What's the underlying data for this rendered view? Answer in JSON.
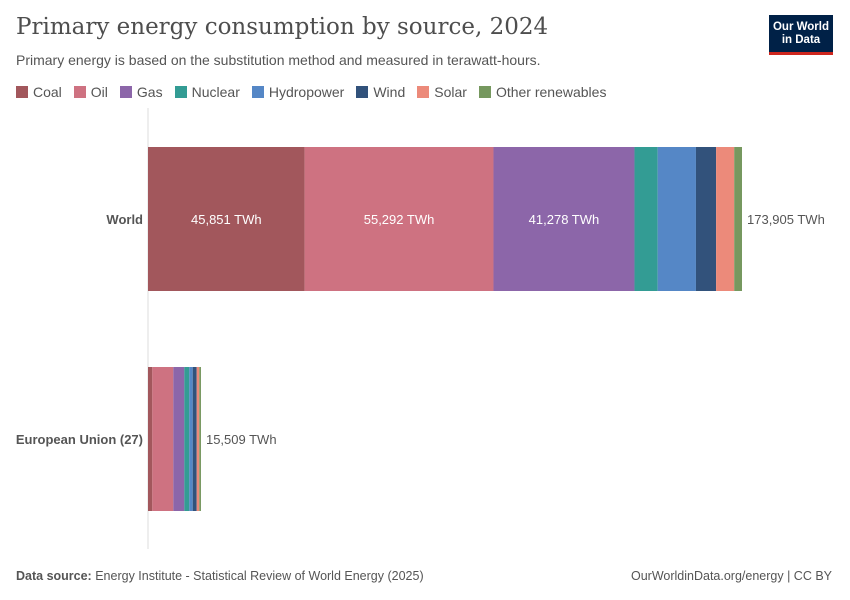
{
  "title": "Primary energy consumption by source, 2024",
  "subtitle": "Primary energy is based on the substitution method and measured in terawatt-hours.",
  "logo": "Our World in Data",
  "footer": {
    "source_label": "Data source:",
    "source": "Energy Institute - Statistical Review of World Energy (2025)",
    "right": "OurWorldinData.org/energy | CC BY"
  },
  "chart_data": {
    "type": "bar",
    "orientation": "horizontal",
    "stacked": true,
    "unit": "TWh",
    "title": "Primary energy consumption by source, 2024",
    "categories": [
      "World",
      "European Union (27)"
    ],
    "totals": [
      "173,905 TWh",
      "15,509 TWh"
    ],
    "total_values": [
      173905,
      15509
    ],
    "legend_placement": "top",
    "series": [
      {
        "name": "Coal",
        "color": "#a2575c",
        "values": [
          45851,
          1260
        ],
        "labels": [
          "45,851 TWh",
          ""
        ]
      },
      {
        "name": "Oil",
        "color": "#ce7281",
        "values": [
          55292,
          6150
        ],
        "labels": [
          "55,292 TWh",
          ""
        ]
      },
      {
        "name": "Gas",
        "color": "#8c66a9",
        "values": [
          41278,
          3220
        ],
        "labels": [
          "41,278 TWh",
          ""
        ]
      },
      {
        "name": "Nuclear",
        "color": "#339c94",
        "values": [
          6800,
          1460
        ],
        "labels": [
          "",
          ""
        ]
      },
      {
        "name": "Hydropower",
        "color": "#5587c6",
        "values": [
          11200,
          1000
        ],
        "labels": [
          "",
          ""
        ]
      },
      {
        "name": "Wind",
        "color": "#32527b",
        "values": [
          5900,
          1170
        ],
        "labels": [
          "",
          ""
        ]
      },
      {
        "name": "Solar",
        "color": "#ec8a7a",
        "values": [
          5300,
          760
        ],
        "labels": [
          "",
          ""
        ]
      },
      {
        "name": "Other renewables",
        "color": "#76985f",
        "values": [
          2284,
          489
        ],
        "labels": [
          "",
          ""
        ]
      }
    ]
  }
}
